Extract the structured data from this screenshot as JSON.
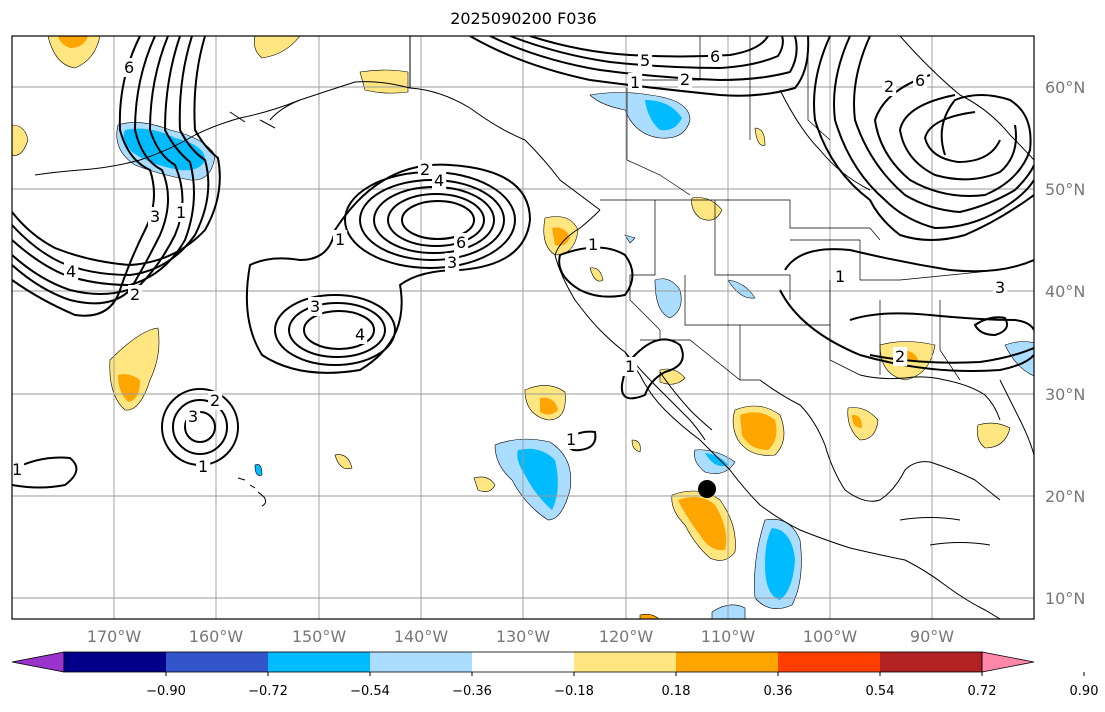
{
  "title": "2025090200 F036",
  "lon_labels": [
    "170°W",
    "160°W",
    "150°W",
    "140°W",
    "130°W",
    "120°W",
    "110°W",
    "100°W",
    "90°W"
  ],
  "lat_labels": [
    "60°N",
    "50°N",
    "40°N",
    "30°N",
    "20°N",
    "10°N"
  ],
  "colorbar": {
    "colors": [
      "#9933cc",
      "#000088",
      "#3355cc",
      "#00bbff",
      "#aaddff",
      "#ffffff",
      "#ffe680",
      "#ffa500",
      "#ff3f00",
      "#b22222",
      "#ff88aa"
    ],
    "tick_labels": [
      "−0.90",
      "−0.72",
      "−0.54",
      "−0.36",
      "−0.18",
      "0.18",
      "0.36",
      "0.54",
      "0.72",
      "0.90"
    ]
  },
  "contour_labels": {
    "a1": "6",
    "a2": "4",
    "a3": "3",
    "a4": "2",
    "a5": "1",
    "b1": "2",
    "b2": "4",
    "b3": "6",
    "b4": "3",
    "b5": "1",
    "c1": "3",
    "c2": "4",
    "d1": "3",
    "d2": "2",
    "d3": "1",
    "e1": "5",
    "e2": "6",
    "e3": "1",
    "e4": "2",
    "f1": "2",
    "f2": "6",
    "f3": "1",
    "f4": "3",
    "g1": "1",
    "g2": "1",
    "g3": "1",
    "g4": "2",
    "g5": "1"
  },
  "marker": "storm-center-dot"
}
